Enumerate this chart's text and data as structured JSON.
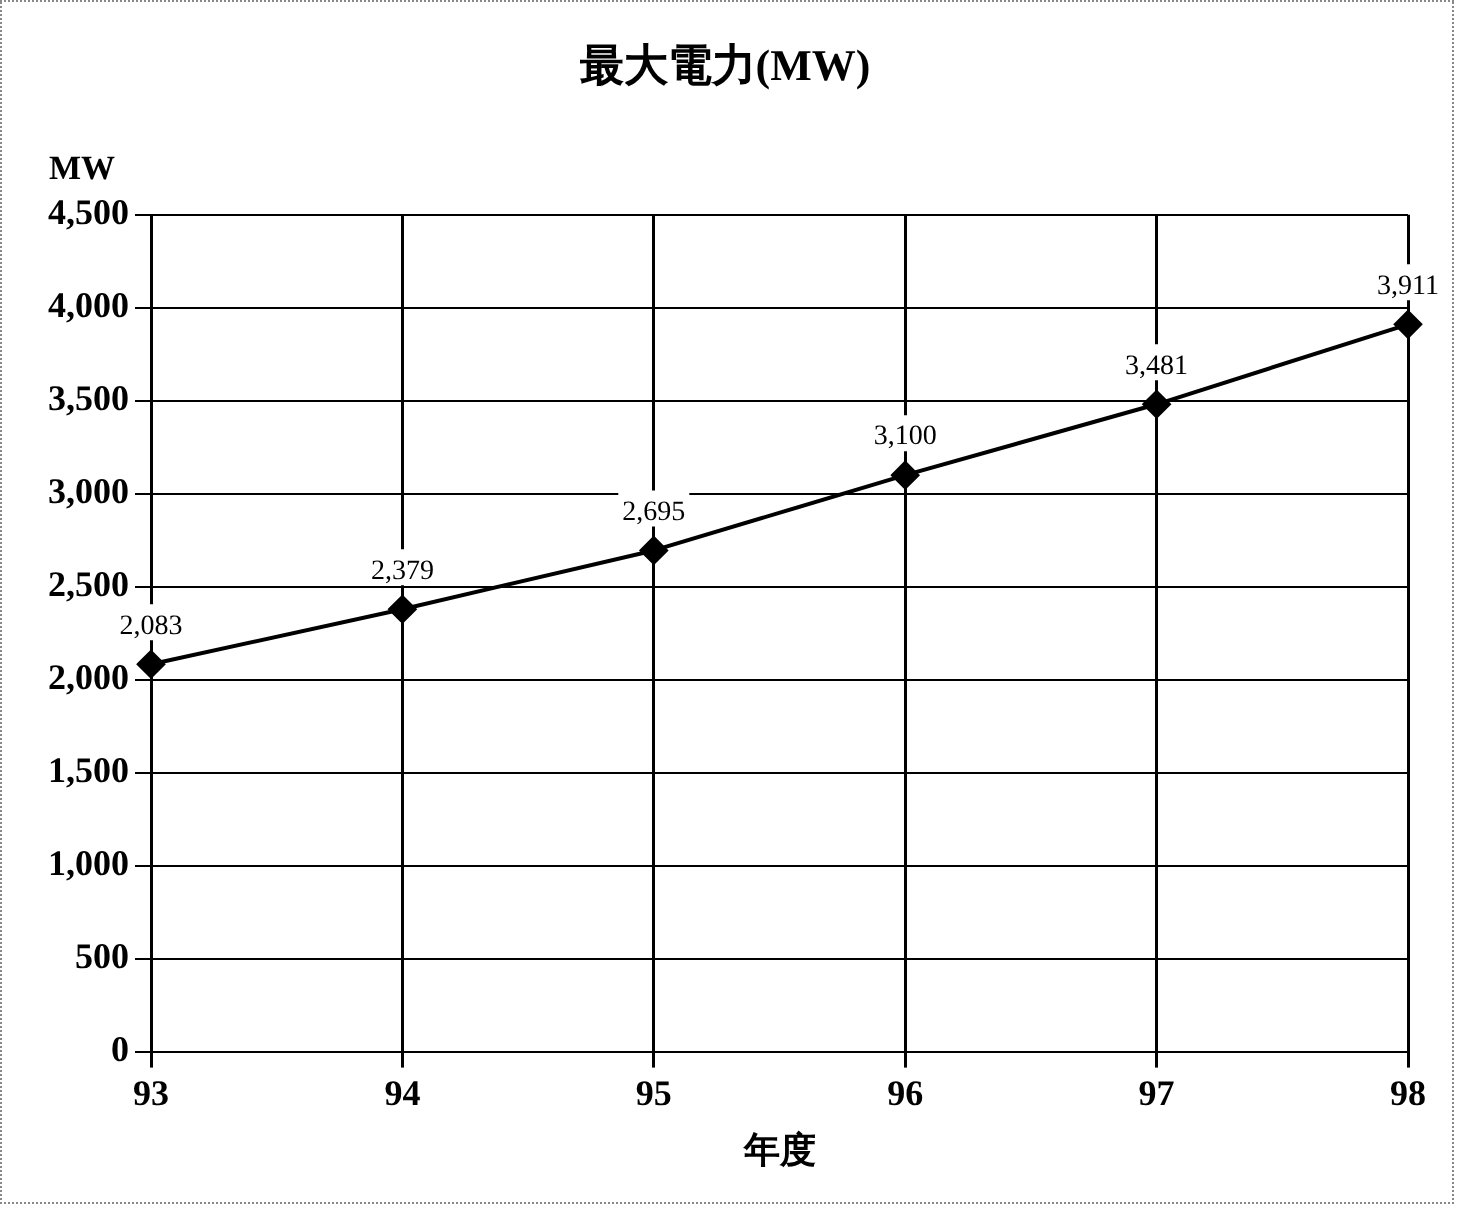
{
  "chart_data": {
    "type": "line",
    "title": "最大電力(MW)",
    "xlabel": "年度",
    "ylabel": "MW",
    "categories": [
      "93",
      "94",
      "95",
      "96",
      "97",
      "98"
    ],
    "series": [
      {
        "color": "#000000",
        "values": [
          2083,
          2379,
          2695,
          3100,
          3481,
          3911
        ]
      }
    ],
    "ylim": [
      0,
      4500
    ],
    "yticks": [
      {
        "value": 0,
        "label": "0"
      },
      {
        "value": 500,
        "label": "500"
      },
      {
        "value": 1000,
        "label": "1,000"
      },
      {
        "value": 1500,
        "label": "1,500"
      },
      {
        "value": 2000,
        "label": "2,000"
      },
      {
        "value": 2500,
        "label": "2,500"
      },
      {
        "value": 3000,
        "label": "3,000"
      },
      {
        "value": 3500,
        "label": "3,500"
      },
      {
        "value": 4000,
        "label": "4,000"
      },
      {
        "value": 4500,
        "label": "4,500"
      }
    ],
    "value_labels": [
      "2,083",
      "2,379",
      "2,695",
      "3,100",
      "3,481",
      "3,911"
    ],
    "grid": true,
    "legend": false,
    "marker": "diamond",
    "line_style": "solid"
  }
}
